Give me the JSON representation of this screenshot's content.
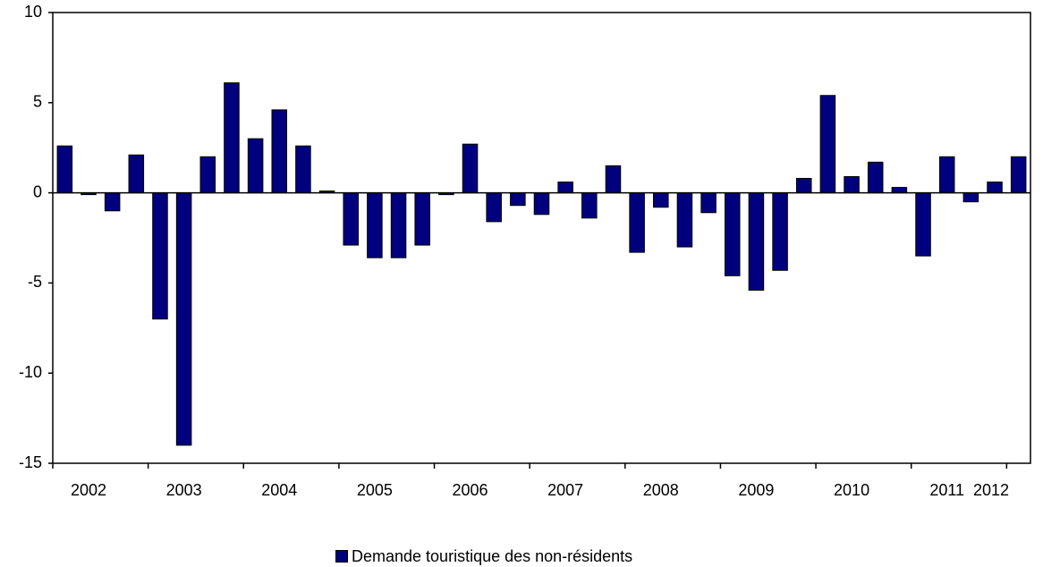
{
  "chart_data": {
    "type": "bar",
    "title": "",
    "xlabel": "",
    "ylabel": "",
    "ylim": [
      -15,
      10
    ],
    "yticks": [
      10,
      5,
      0,
      -5,
      -10,
      -15
    ],
    "x_tick_labels": [
      "2002",
      "2003",
      "2004",
      "2005",
      "2006",
      "2007",
      "2008",
      "2009",
      "2010",
      "2011",
      "2012"
    ],
    "grid": false,
    "legend_position": "bottom-center",
    "bar_color": "#00007f",
    "series": [
      {
        "name": "Demande touristique des non-résidents",
        "values": [
          2.6,
          -0.1,
          -1.0,
          2.1,
          -7.0,
          -14.0,
          2.0,
          6.1,
          3.0,
          4.6,
          2.6,
          0.1,
          -2.9,
          -3.6,
          -3.6,
          -2.9,
          -0.1,
          2.7,
          -1.6,
          -0.7,
          -1.2,
          0.6,
          -1.4,
          1.5,
          -3.3,
          -0.8,
          -3.0,
          -1.1,
          -4.6,
          -5.4,
          -4.3,
          0.8,
          5.4,
          0.9,
          1.7,
          0.3,
          -3.5,
          2.0,
          -0.5,
          0.6,
          2.0
        ]
      }
    ]
  }
}
